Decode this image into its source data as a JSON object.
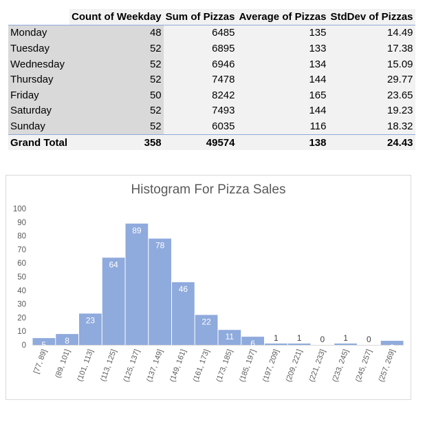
{
  "pivot": {
    "headers": [
      "",
      "Count of Weekday",
      "Sum of Pizzas",
      "Average of Pizzas",
      "StdDev of Pizzas"
    ],
    "rows": [
      {
        "day": "Monday",
        "count": "48",
        "sum": "6485",
        "avg": "135",
        "std": "14.49"
      },
      {
        "day": "Tuesday",
        "count": "52",
        "sum": "6895",
        "avg": "133",
        "std": "17.38"
      },
      {
        "day": "Wednesday",
        "count": "52",
        "sum": "6946",
        "avg": "134",
        "std": "15.09"
      },
      {
        "day": "Thursday",
        "count": "52",
        "sum": "7478",
        "avg": "144",
        "std": "29.77"
      },
      {
        "day": "Friday",
        "count": "50",
        "sum": "8242",
        "avg": "165",
        "std": "23.65"
      },
      {
        "day": "Saturday",
        "count": "52",
        "sum": "7493",
        "avg": "144",
        "std": "19.23"
      },
      {
        "day": "Sunday",
        "count": "52",
        "sum": "6035",
        "avg": "116",
        "std": "18.32"
      }
    ],
    "total": {
      "label": "Grand Total",
      "count": "358",
      "sum": "49574",
      "avg": "138",
      "std": "24.43"
    }
  },
  "chart_data": {
    "type": "bar",
    "title": "Histogram For Pizza Sales",
    "categories": [
      "[77, 89]",
      "(89, 101]",
      "(101, 113]",
      "(113, 125]",
      "(125, 137]",
      "(137, 149]",
      "(149, 161]",
      "(161, 173]",
      "(173, 185]",
      "(185, 197]",
      "(197, 209]",
      "(209, 221]",
      "(221, 233]",
      "(233, 245]",
      "(245, 257]",
      "(257, 269]"
    ],
    "values": [
      5,
      8,
      23,
      64,
      89,
      78,
      46,
      22,
      11,
      6,
      1,
      1,
      0,
      1,
      0,
      3
    ],
    "ylim": [
      0,
      100
    ],
    "yticks": [
      0,
      10,
      20,
      30,
      40,
      50,
      60,
      70,
      80,
      90,
      100
    ],
    "grid": false,
    "bar_color": "#8faadc",
    "label_color_inside": "#ffffff",
    "label_color_outside": "#404040"
  }
}
